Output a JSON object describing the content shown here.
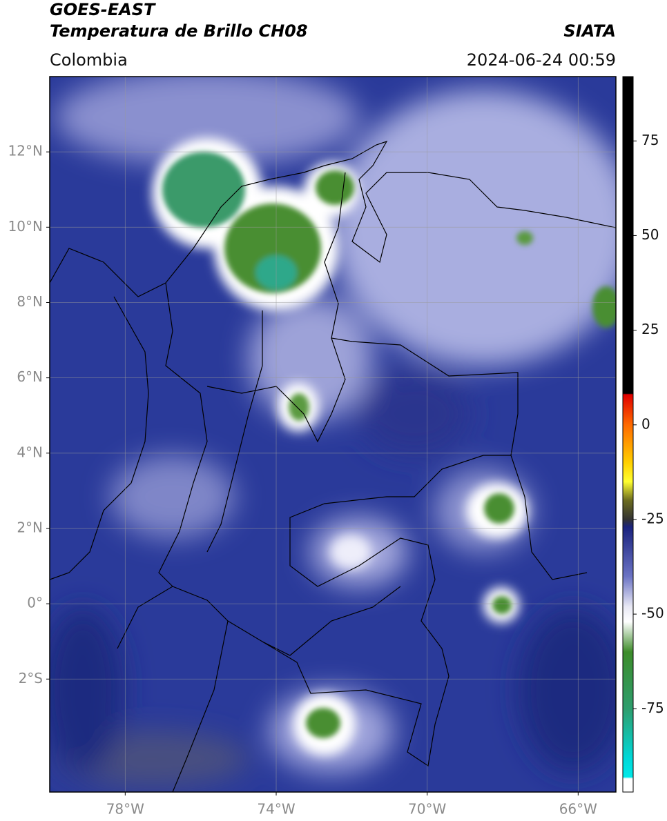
{
  "header": {
    "title": "GOES-EAST",
    "subtitle": "Temperatura de Brillo CH08",
    "source": "SIATA",
    "region": "Colombia",
    "datetime": "2024-06-24 00:59"
  },
  "map": {
    "xlim": [
      -80,
      -65
    ],
    "ylim": [
      -5,
      14
    ],
    "xticks": [
      {
        "value": -78,
        "label": "78°W"
      },
      {
        "value": -74,
        "label": "74°W"
      },
      {
        "value": -70,
        "label": "70°W"
      },
      {
        "value": -66,
        "label": "66°W"
      }
    ],
    "yticks": [
      {
        "value": 12,
        "label": "12°N"
      },
      {
        "value": 10,
        "label": "10°N"
      },
      {
        "value": 8,
        "label": "8°N"
      },
      {
        "value": 6,
        "label": "6°N"
      },
      {
        "value": 4,
        "label": "4°N"
      },
      {
        "value": 2,
        "label": "2°N"
      },
      {
        "value": 0,
        "label": "0°"
      },
      {
        "value": -2,
        "label": "2°S"
      }
    ],
    "grid": true
  },
  "colorbar": {
    "lim": [
      -97,
      92
    ],
    "ticks": [
      -75,
      -50,
      -25,
      0,
      25,
      50,
      75
    ],
    "stops": [
      [
        92,
        "#000000"
      ],
      [
        8.3,
        "#000000"
      ],
      [
        8,
        "#e00000"
      ],
      [
        0,
        "#ff6a00"
      ],
      [
        -10,
        "#ffd000"
      ],
      [
        -15,
        "#ffff30"
      ],
      [
        -20,
        "#6b6b20"
      ],
      [
        -25,
        "#333333"
      ],
      [
        -27,
        "#1a237e"
      ],
      [
        -40,
        "#6b73c4"
      ],
      [
        -48,
        "#e8e8f4"
      ],
      [
        -52,
        "#ffffff"
      ],
      [
        -60,
        "#3d8c2a"
      ],
      [
        -75,
        "#2e9e6e"
      ],
      [
        -88,
        "#00d8d8"
      ],
      [
        -93,
        "#00e8e8"
      ],
      [
        -93.5,
        "#ffffff"
      ],
      [
        -97,
        "#ffffff"
      ]
    ]
  }
}
